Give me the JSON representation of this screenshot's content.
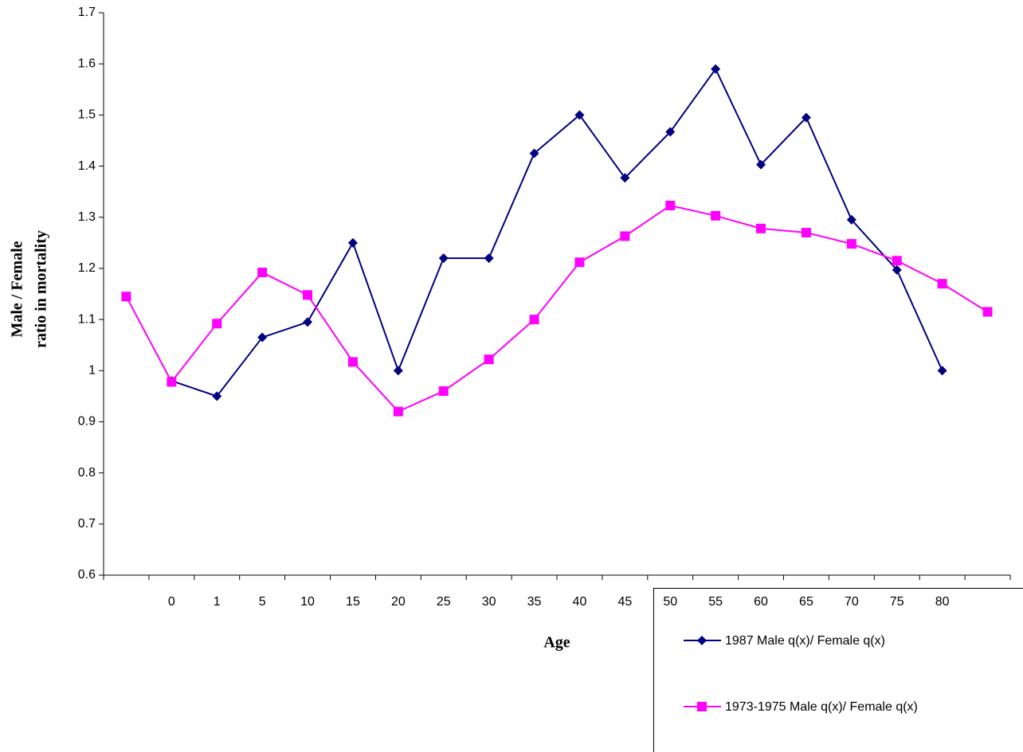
{
  "chart_data": {
    "type": "line",
    "x_label": "Age",
    "y_label": [
      "Male / Female",
      "ratio in mortality"
    ],
    "categories": [
      null,
      "0",
      "1",
      "5",
      "10",
      "15",
      "20",
      "25",
      "30",
      "35",
      "40",
      "45",
      "50",
      "55",
      "60",
      "65",
      "70",
      "75",
      "80",
      null
    ],
    "series": [
      {
        "name": "1987 Male q(x)/ Female q(x)",
        "color": "#000080",
        "marker": "diamond",
        "values": [
          null,
          0.98,
          0.95,
          1.065,
          1.095,
          1.25,
          1.0,
          1.22,
          1.22,
          1.425,
          1.5,
          1.377,
          1.467,
          1.59,
          1.403,
          1.495,
          1.295,
          1.197,
          1.0,
          null
        ]
      },
      {
        "name": "1973-1975 Male q(x)/ Female q(x)",
        "color": "#ff00ff",
        "marker": "square",
        "values": [
          1.145,
          0.978,
          1.092,
          1.192,
          1.148,
          1.017,
          0.92,
          0.96,
          1.022,
          1.1,
          1.212,
          1.263,
          1.323,
          1.303,
          1.278,
          1.27,
          1.248,
          1.215,
          1.17,
          1.115
        ]
      }
    ],
    "ylim": [
      0.6,
      1.7
    ],
    "yticks": [
      0.6,
      0.7,
      0.8,
      0.9,
      1,
      1.1,
      1.2,
      1.3,
      1.4,
      1.5,
      1.6,
      1.7
    ],
    "grid": false,
    "legend": "bottom-right"
  }
}
